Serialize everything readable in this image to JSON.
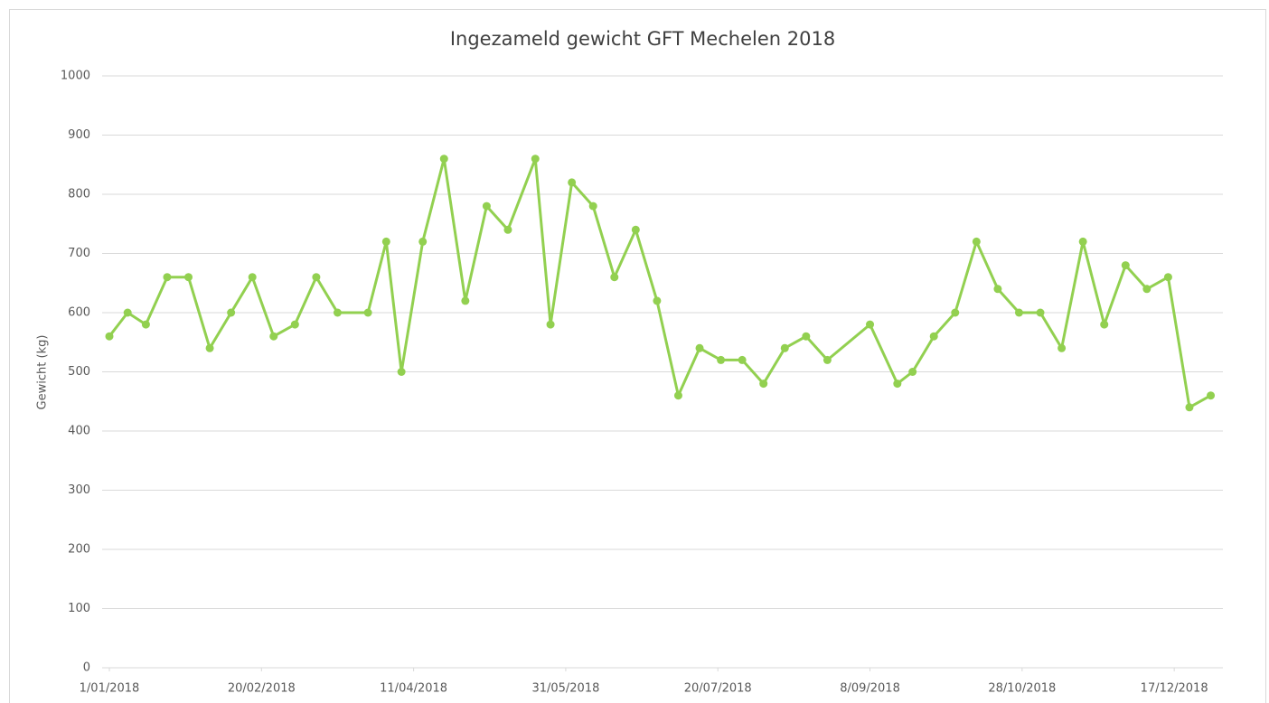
{
  "chart_data": {
    "type": "line",
    "title": "Ingezameld gewicht GFT Mechelen 2018",
    "y_label": "Gewicht (kg)",
    "x": [
      "2018-01-01",
      "2018-01-07",
      "2018-01-13",
      "2018-01-20",
      "2018-01-27",
      "2018-02-03",
      "2018-02-10",
      "2018-02-17",
      "2018-02-24",
      "2018-03-03",
      "2018-03-10",
      "2018-03-17",
      "2018-03-27",
      "2018-04-02",
      "2018-04-07",
      "2018-04-14",
      "2018-04-21",
      "2018-04-28",
      "2018-05-05",
      "2018-05-12",
      "2018-05-21",
      "2018-05-26",
      "2018-06-02",
      "2018-06-09",
      "2018-06-16",
      "2018-06-23",
      "2018-06-30",
      "2018-07-07",
      "2018-07-14",
      "2018-07-21",
      "2018-07-28",
      "2018-08-04",
      "2018-08-11",
      "2018-08-18",
      "2018-08-25",
      "2018-09-08",
      "2018-09-17",
      "2018-09-22",
      "2018-09-29",
      "2018-10-06",
      "2018-10-13",
      "2018-10-20",
      "2018-10-27",
      "2018-11-03",
      "2018-11-10",
      "2018-11-17",
      "2018-11-24",
      "2018-12-01",
      "2018-12-08",
      "2018-12-15",
      "2018-12-22",
      "2018-12-29"
    ],
    "series": [
      {
        "name": "Gewicht",
        "color": "#92d050",
        "values": [
          560,
          600,
          580,
          660,
          660,
          540,
          600,
          660,
          560,
          580,
          660,
          600,
          600,
          720,
          500,
          720,
          860,
          620,
          780,
          740,
          860,
          580,
          820,
          780,
          660,
          740,
          620,
          460,
          540,
          520,
          520,
          480,
          540,
          560,
          520,
          580,
          480,
          500,
          560,
          600,
          720,
          640,
          600,
          600,
          540,
          720,
          580,
          680,
          640,
          660,
          440,
          460
        ]
      }
    ],
    "xlim": [
      "2018-01-01",
      "2019-01-02"
    ],
    "xticks": [
      {
        "value": "2018-01-01",
        "label": "1/01/2018"
      },
      {
        "value": "2018-02-20",
        "label": "20/02/2018"
      },
      {
        "value": "2018-04-11",
        "label": "11/04/2018"
      },
      {
        "value": "2018-05-31",
        "label": "31/05/2018"
      },
      {
        "value": "2018-07-20",
        "label": "20/07/2018"
      },
      {
        "value": "2018-09-08",
        "label": "8/09/2018"
      },
      {
        "value": "2018-10-28",
        "label": "28/10/2018"
      },
      {
        "value": "2018-12-17",
        "label": "17/12/2018"
      }
    ],
    "ylim": [
      0,
      1000
    ],
    "yticks": [
      0,
      100,
      200,
      300,
      400,
      500,
      600,
      700,
      800,
      900,
      1000
    ],
    "grid": true
  }
}
